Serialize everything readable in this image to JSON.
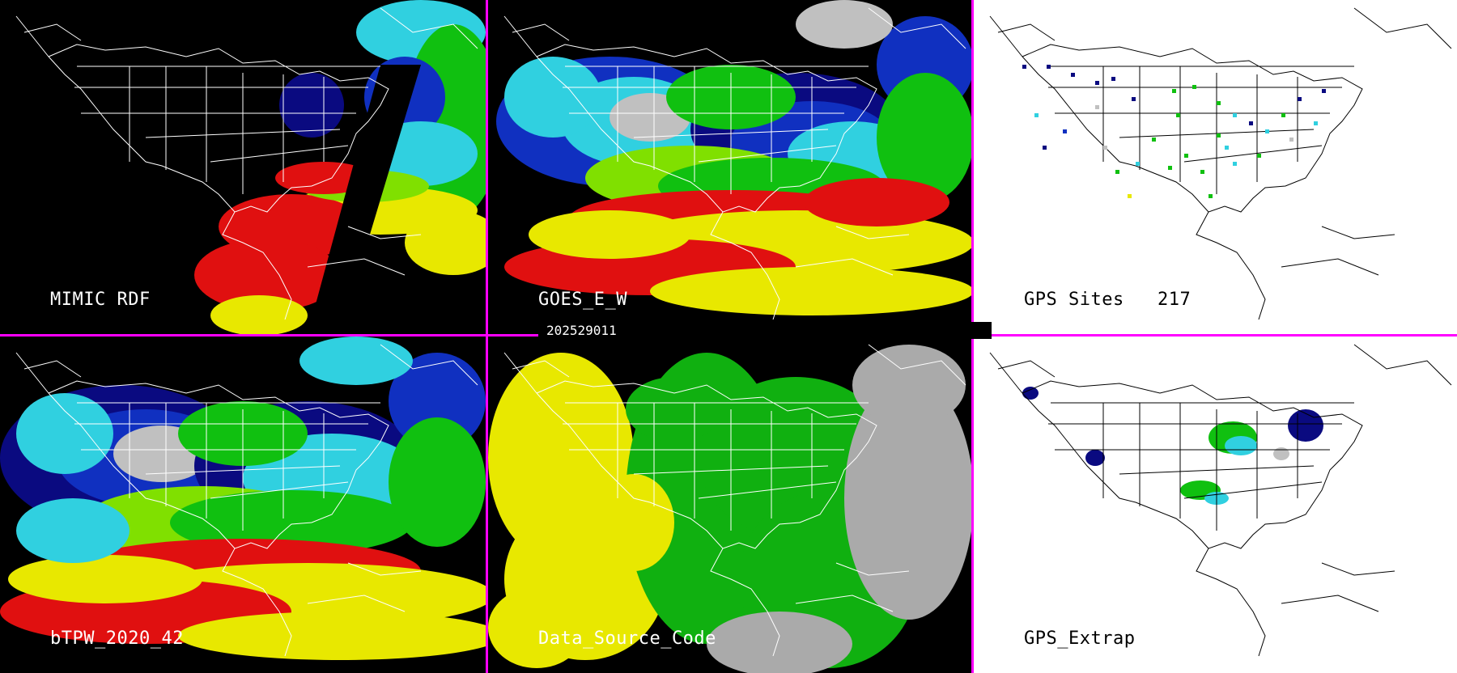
{
  "timestamp": "202529011",
  "panels": [
    {
      "id": "p1",
      "label": "MIMIC RDF",
      "count": "",
      "background": "#000000",
      "line": "#ffffff"
    },
    {
      "id": "p2",
      "label": "GOES_E_W",
      "count": "",
      "background": "#000000",
      "line": "#ffffff"
    },
    {
      "id": "p3",
      "label": "GPS Sites",
      "count": "217",
      "background": "#ffffff",
      "line": "#000000"
    },
    {
      "id": "p4",
      "label": "bTPW_2020_42",
      "count": "",
      "background": "#000000",
      "line": "#ffffff"
    },
    {
      "id": "p5",
      "label": "Data_Source_Code",
      "count": "",
      "background": "#000000",
      "line": "#ffffff"
    },
    {
      "id": "p6",
      "label": "GPS_Extrap",
      "count": "",
      "background": "#ffffff",
      "line": "#000000"
    }
  ],
  "colors": {
    "divider": "#ff00ff",
    "tpw_scale": [
      "#c0c0c0",
      "#0a0a80",
      "#1030c0",
      "#30d0e0",
      "#10c010",
      "#80e000",
      "#e8e800",
      "#e01010"
    ],
    "source_codes": [
      "#e8e800",
      "#10b010",
      "#aaaaaa",
      "#000000"
    ]
  }
}
